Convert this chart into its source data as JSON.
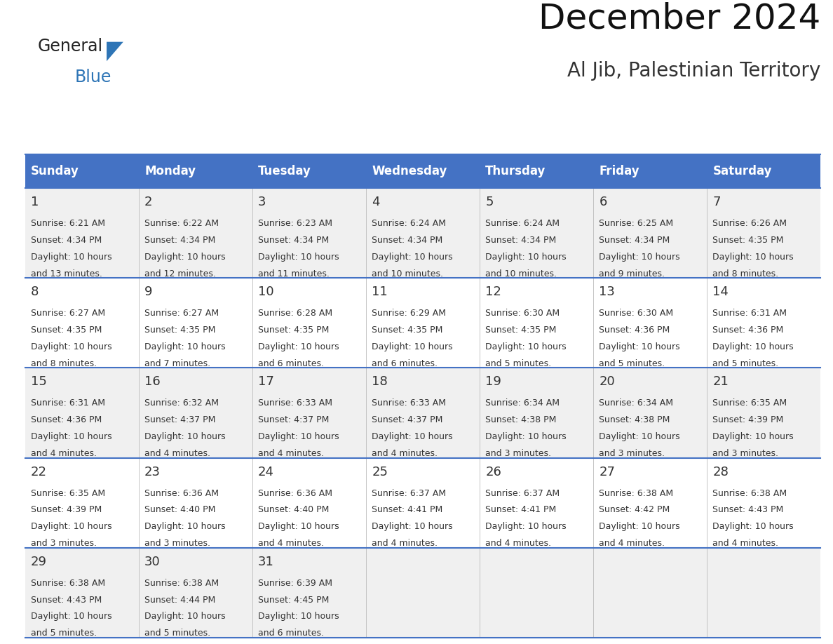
{
  "title": "December 2024",
  "subtitle": "Al Jib, Palestinian Territory",
  "header_color": "#4472C4",
  "header_text_color": "#FFFFFF",
  "day_names": [
    "Sunday",
    "Monday",
    "Tuesday",
    "Wednesday",
    "Thursday",
    "Friday",
    "Saturday"
  ],
  "row_bg_colors": [
    "#F0F0F0",
    "#FFFFFF"
  ],
  "border_color": "#4472C4",
  "text_color": "#333333",
  "num_color": "#333333",
  "days": [
    {
      "day": 1,
      "col": 0,
      "row": 0,
      "sunrise": "6:21 AM",
      "sunset": "4:34 PM",
      "daylight_suffix": "13 minutes."
    },
    {
      "day": 2,
      "col": 1,
      "row": 0,
      "sunrise": "6:22 AM",
      "sunset": "4:34 PM",
      "daylight_suffix": "12 minutes."
    },
    {
      "day": 3,
      "col": 2,
      "row": 0,
      "sunrise": "6:23 AM",
      "sunset": "4:34 PM",
      "daylight_suffix": "11 minutes."
    },
    {
      "day": 4,
      "col": 3,
      "row": 0,
      "sunrise": "6:24 AM",
      "sunset": "4:34 PM",
      "daylight_suffix": "10 minutes."
    },
    {
      "day": 5,
      "col": 4,
      "row": 0,
      "sunrise": "6:24 AM",
      "sunset": "4:34 PM",
      "daylight_suffix": "10 minutes."
    },
    {
      "day": 6,
      "col": 5,
      "row": 0,
      "sunrise": "6:25 AM",
      "sunset": "4:34 PM",
      "daylight_suffix": "9 minutes."
    },
    {
      "day": 7,
      "col": 6,
      "row": 0,
      "sunrise": "6:26 AM",
      "sunset": "4:35 PM",
      "daylight_suffix": "8 minutes."
    },
    {
      "day": 8,
      "col": 0,
      "row": 1,
      "sunrise": "6:27 AM",
      "sunset": "4:35 PM",
      "daylight_suffix": "8 minutes."
    },
    {
      "day": 9,
      "col": 1,
      "row": 1,
      "sunrise": "6:27 AM",
      "sunset": "4:35 PM",
      "daylight_suffix": "7 minutes."
    },
    {
      "day": 10,
      "col": 2,
      "row": 1,
      "sunrise": "6:28 AM",
      "sunset": "4:35 PM",
      "daylight_suffix": "6 minutes."
    },
    {
      "day": 11,
      "col": 3,
      "row": 1,
      "sunrise": "6:29 AM",
      "sunset": "4:35 PM",
      "daylight_suffix": "6 minutes."
    },
    {
      "day": 12,
      "col": 4,
      "row": 1,
      "sunrise": "6:30 AM",
      "sunset": "4:35 PM",
      "daylight_suffix": "5 minutes."
    },
    {
      "day": 13,
      "col": 5,
      "row": 1,
      "sunrise": "6:30 AM",
      "sunset": "4:36 PM",
      "daylight_suffix": "5 minutes."
    },
    {
      "day": 14,
      "col": 6,
      "row": 1,
      "sunrise": "6:31 AM",
      "sunset": "4:36 PM",
      "daylight_suffix": "5 minutes."
    },
    {
      "day": 15,
      "col": 0,
      "row": 2,
      "sunrise": "6:31 AM",
      "sunset": "4:36 PM",
      "daylight_suffix": "4 minutes."
    },
    {
      "day": 16,
      "col": 1,
      "row": 2,
      "sunrise": "6:32 AM",
      "sunset": "4:37 PM",
      "daylight_suffix": "4 minutes."
    },
    {
      "day": 17,
      "col": 2,
      "row": 2,
      "sunrise": "6:33 AM",
      "sunset": "4:37 PM",
      "daylight_suffix": "4 minutes."
    },
    {
      "day": 18,
      "col": 3,
      "row": 2,
      "sunrise": "6:33 AM",
      "sunset": "4:37 PM",
      "daylight_suffix": "4 minutes."
    },
    {
      "day": 19,
      "col": 4,
      "row": 2,
      "sunrise": "6:34 AM",
      "sunset": "4:38 PM",
      "daylight_suffix": "3 minutes."
    },
    {
      "day": 20,
      "col": 5,
      "row": 2,
      "sunrise": "6:34 AM",
      "sunset": "4:38 PM",
      "daylight_suffix": "3 minutes."
    },
    {
      "day": 21,
      "col": 6,
      "row": 2,
      "sunrise": "6:35 AM",
      "sunset": "4:39 PM",
      "daylight_suffix": "3 minutes."
    },
    {
      "day": 22,
      "col": 0,
      "row": 3,
      "sunrise": "6:35 AM",
      "sunset": "4:39 PM",
      "daylight_suffix": "3 minutes."
    },
    {
      "day": 23,
      "col": 1,
      "row": 3,
      "sunrise": "6:36 AM",
      "sunset": "4:40 PM",
      "daylight_suffix": "3 minutes."
    },
    {
      "day": 24,
      "col": 2,
      "row": 3,
      "sunrise": "6:36 AM",
      "sunset": "4:40 PM",
      "daylight_suffix": "4 minutes."
    },
    {
      "day": 25,
      "col": 3,
      "row": 3,
      "sunrise": "6:37 AM",
      "sunset": "4:41 PM",
      "daylight_suffix": "4 minutes."
    },
    {
      "day": 26,
      "col": 4,
      "row": 3,
      "sunrise": "6:37 AM",
      "sunset": "4:41 PM",
      "daylight_suffix": "4 minutes."
    },
    {
      "day": 27,
      "col": 5,
      "row": 3,
      "sunrise": "6:38 AM",
      "sunset": "4:42 PM",
      "daylight_suffix": "4 minutes."
    },
    {
      "day": 28,
      "col": 6,
      "row": 3,
      "sunrise": "6:38 AM",
      "sunset": "4:43 PM",
      "daylight_suffix": "4 minutes."
    },
    {
      "day": 29,
      "col": 0,
      "row": 4,
      "sunrise": "6:38 AM",
      "sunset": "4:43 PM",
      "daylight_suffix": "5 minutes."
    },
    {
      "day": 30,
      "col": 1,
      "row": 4,
      "sunrise": "6:38 AM",
      "sunset": "4:44 PM",
      "daylight_suffix": "5 minutes."
    },
    {
      "day": 31,
      "col": 2,
      "row": 4,
      "sunrise": "6:39 AM",
      "sunset": "4:45 PM",
      "daylight_suffix": "6 minutes."
    }
  ],
  "logo_general_color": "#222222",
  "logo_blue_color": "#2E75B6",
  "logo_triangle_color": "#2E75B6",
  "title_fontsize": 36,
  "subtitle_fontsize": 20,
  "dayname_fontsize": 12,
  "daynum_fontsize": 13,
  "cell_fontsize": 9
}
